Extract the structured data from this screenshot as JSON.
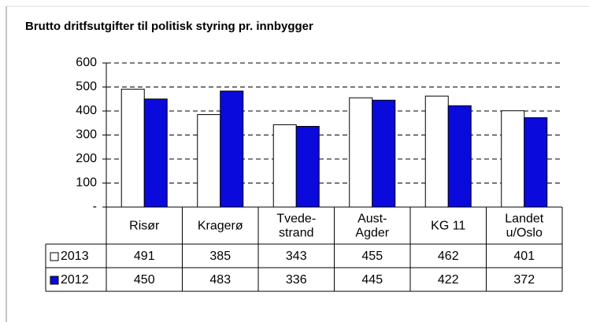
{
  "chart_data": {
    "type": "bar",
    "title": "Brutto dritfsutgifter til politisk styring pr. innbygger",
    "categories": [
      "Risør",
      "Kragerø",
      "Tvede-\nstrand",
      "Aust-\nAgder",
      "KG 11",
      "Landet\nu/Oslo"
    ],
    "series": [
      {
        "name": "2013",
        "color": "#ffffff",
        "values": [
          491,
          385,
          343,
          455,
          462,
          401
        ]
      },
      {
        "name": "2012",
        "color": "#0a0adc",
        "values": [
          450,
          483,
          336,
          445,
          422,
          372
        ]
      }
    ],
    "ylim": [
      0,
      600
    ],
    "yticks": [
      {
        "value": 0,
        "label": "-"
      },
      100,
      200,
      300,
      400,
      500,
      600
    ],
    "grid": true
  }
}
